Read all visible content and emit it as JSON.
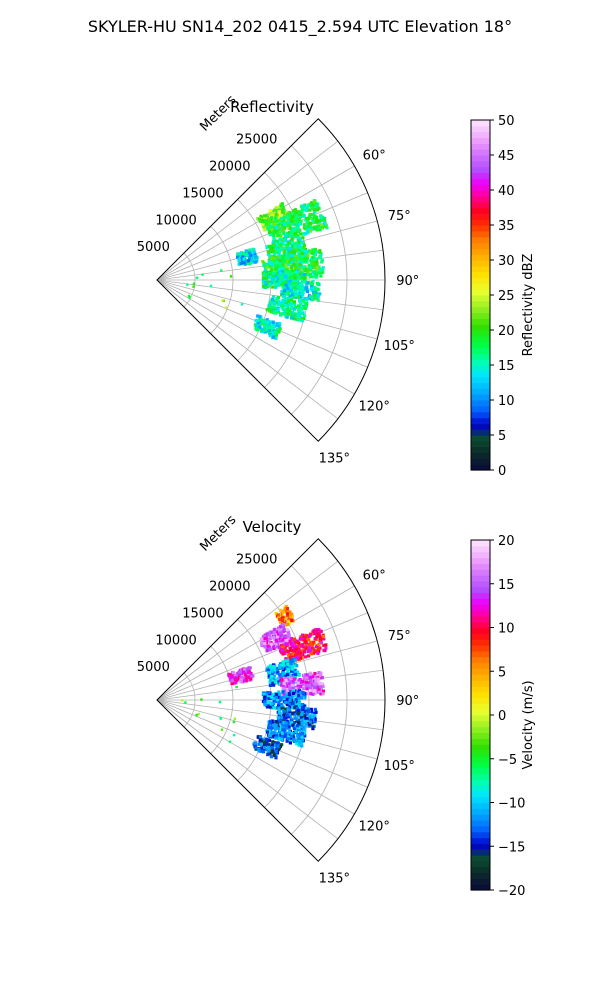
{
  "figure_title": "SKYLER-HU  SN14_202  0415_2.594 UTC Elevation 18°",
  "chart_data": [
    {
      "type": "polar-sector-radar",
      "title": "Reflectivity",
      "radial_label": "Meters",
      "r_ticks": [
        "5000",
        "10000",
        "15000",
        "20000",
        "25000"
      ],
      "r_range": [
        0,
        30000
      ],
      "theta_ticks": [
        "60°",
        "75°",
        "90°",
        "105°",
        "120°",
        "135°"
      ],
      "theta_range_deg": [
        45,
        135
      ],
      "colorbar": {
        "label": "Reflectivity dBZ",
        "ticks": [
          "0",
          "5",
          "10",
          "15",
          "20",
          "25",
          "30",
          "35",
          "40",
          "45",
          "50"
        ],
        "range": [
          0,
          50
        ]
      },
      "echo_blobs": [
        {
          "az": 62,
          "r0": 15500,
          "r1": 19500,
          "spread": 3.5,
          "value": 22
        },
        {
          "az": 68,
          "r0": 16000,
          "r1": 23500,
          "spread": 5,
          "value": 18
        },
        {
          "az": 76,
          "r0": 11000,
          "r1": 13500,
          "spread": 4,
          "value": 13
        },
        {
          "az": 78,
          "r0": 15000,
          "r1": 20000,
          "spread": 5,
          "value": 17
        },
        {
          "az": 84,
          "r0": 14000,
          "r1": 22000,
          "spread": 5,
          "value": 18
        },
        {
          "az": 90,
          "r0": 14000,
          "r1": 19500,
          "spread": 4,
          "value": 16
        },
        {
          "az": 94,
          "r0": 16500,
          "r1": 21500,
          "spread": 3.5,
          "value": 15
        },
        {
          "az": 102,
          "r0": 15000,
          "r1": 20000,
          "spread": 4,
          "value": 16
        },
        {
          "az": 113,
          "r0": 14000,
          "r1": 17500,
          "spread": 3.5,
          "value": 15
        }
      ]
    },
    {
      "type": "polar-sector-radar",
      "title": "Velocity",
      "radial_label": "Meters",
      "r_ticks": [
        "5000",
        "10000",
        "15000",
        "20000",
        "25000"
      ],
      "r_range": [
        0,
        30000
      ],
      "theta_ticks": [
        "60°",
        "75°",
        "90°",
        "105°",
        "120°",
        "135°"
      ],
      "theta_range_deg": [
        45,
        135
      ],
      "colorbar": {
        "label": "Velocity (m/s)",
        "ticks": [
          "−20",
          "−15",
          "−10",
          "−5",
          "0",
          "5",
          "10",
          "15",
          "20"
        ],
        "range": [
          -20,
          20
        ]
      },
      "echo_blobs": [
        {
          "az": 57,
          "r0": 19000,
          "r1": 21000,
          "spread": 3,
          "value": 6
        },
        {
          "az": 63,
          "r0": 15500,
          "r1": 19500,
          "spread": 4,
          "value": 15
        },
        {
          "az": 70,
          "r0": 17500,
          "r1": 23500,
          "spread": 4,
          "value": 10
        },
        {
          "az": 74,
          "r0": 10000,
          "r1": 13000,
          "spread": 4,
          "value": 14
        },
        {
          "az": 78,
          "r0": 15000,
          "r1": 19000,
          "spread": 5,
          "value": -11
        },
        {
          "az": 84,
          "r0": 16500,
          "r1": 22000,
          "spread": 4,
          "value": 15
        },
        {
          "az": 90,
          "r0": 14000,
          "r1": 19500,
          "spread": 4,
          "value": -12
        },
        {
          "az": 97,
          "r0": 16000,
          "r1": 21000,
          "spread": 4,
          "value": -13
        },
        {
          "az": 104,
          "r0": 15000,
          "r1": 20000,
          "spread": 4,
          "value": -12
        },
        {
          "az": 113,
          "r0": 14000,
          "r1": 17500,
          "spread": 3.5,
          "value": -14
        }
      ]
    }
  ]
}
